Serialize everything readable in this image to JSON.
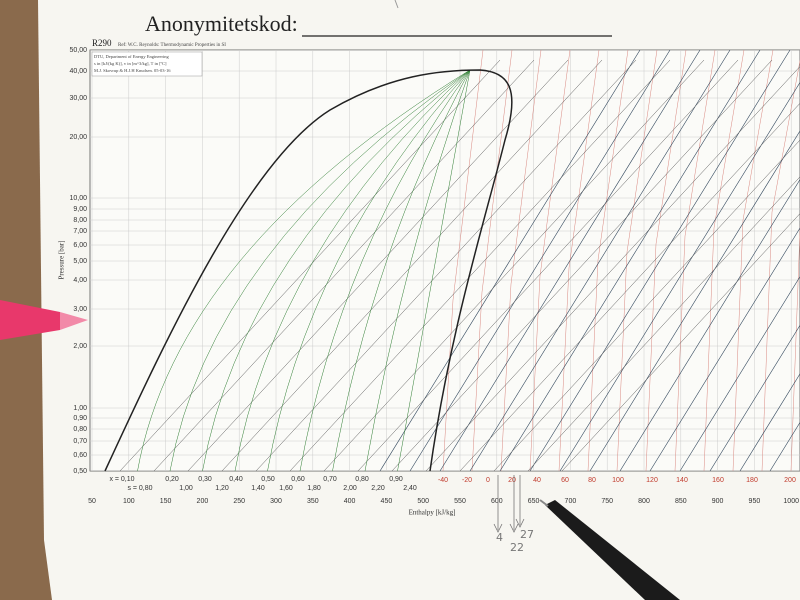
{
  "header": {
    "label": "Anonymitetskod:"
  },
  "chart": {
    "title": "R290",
    "source": "Ref: W.C. Reynolds: Thermodynamic Properties in SI",
    "info": [
      "DTU, Department of Energy Engineering",
      "s in [kJ/(kg K)], v in [m^3/kg], T in [ºC]",
      "M.J. Skovrup & H.J.H Knudsen. 05-03-16"
    ],
    "y_label": "Pressure [bar]",
    "y_ticks": [
      "50,00",
      "40,00",
      "30,00",
      "20,00",
      "10,00",
      "9,00",
      "8,00",
      "7,00",
      "6,00",
      "5,00",
      "4,00",
      "3,00",
      "2,00",
      "1,00",
      "0,90",
      "0,80",
      "0,70",
      "0,60",
      "0,50"
    ],
    "x_label": "Enthalpy [kJ/kg]",
    "x_ticks": [
      "50",
      "100",
      "150",
      "200",
      "250",
      "300",
      "350",
      "400",
      "450",
      "500",
      "550",
      "600",
      "650",
      "700",
      "750",
      "800",
      "850",
      "900",
      "950",
      "1000"
    ],
    "quality_labels": [
      "x = 0,10",
      "0,20",
      "0,30",
      "0,40",
      "0,50",
      "0,60",
      "0,70",
      "0,80",
      "0,90"
    ],
    "entropy_labels": [
      "s = 0,80",
      "1,00",
      "1,20",
      "1,40",
      "1,60",
      "1,80",
      "2,00",
      "2,20",
      "2,40"
    ],
    "temperature_labels": [
      "-40",
      "-20",
      "0",
      "20",
      "40",
      "60",
      "80",
      "100",
      "120",
      "140",
      "160",
      "180",
      "200"
    ]
  },
  "handwriting": [
    "4",
    "22",
    "27"
  ]
}
